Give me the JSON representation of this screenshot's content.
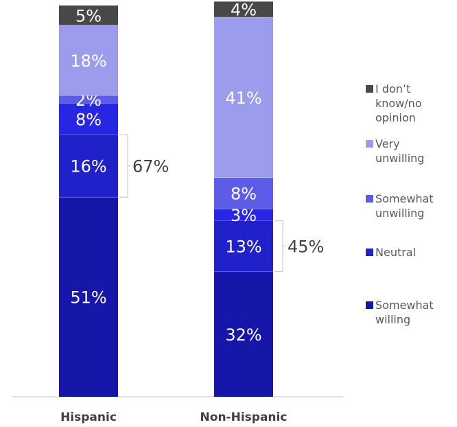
{
  "chart_data": {
    "type": "bar",
    "stacked": true,
    "categories": [
      "Hispanic",
      "Non-Hispanic"
    ],
    "series": [
      {
        "name": "Somewhat willing",
        "values": [
          51,
          32
        ],
        "labels": [
          "51%",
          "32%"
        ],
        "color": "#1616a8"
      },
      {
        "name": "Neutral",
        "values": [
          16,
          13
        ],
        "labels": [
          "16%",
          "13%"
        ],
        "color": "#2121c9"
      },
      {
        "name": "Somewhat unwilling",
        "values": [
          8,
          3
        ],
        "labels": [
          "8%",
          "3%"
        ],
        "color": "#2727e3"
      },
      {
        "name": "Very unwilling",
        "values": [
          2,
          8
        ],
        "labels": [
          "2%",
          "8%"
        ],
        "color": "#5c5ce8"
      },
      {
        "name": "I don't know/no opinion",
        "values": [
          18,
          41
        ],
        "labels": [
          "18%",
          "41%"
        ],
        "color": "#9c9cec"
      },
      {
        "name": "",
        "values": [
          5,
          4
        ],
        "labels": [
          "5%",
          "4%"
        ],
        "color": "#484848"
      }
    ],
    "brackets": [
      {
        "category": "Hispanic",
        "label": "67%",
        "from_series": 0,
        "to_series": 1
      },
      {
        "category": "Non-Hispanic",
        "label": "45%",
        "from_series": 0,
        "to_series": 1
      }
    ],
    "legend": {
      "position": "right",
      "entries": [
        {
          "label_lines": [
            "I don’t",
            "know/no",
            "opinion"
          ],
          "color": "#484848"
        },
        {
          "label_lines": [
            "Very",
            "unwilling"
          ],
          "color": "#9c9cec"
        },
        {
          "label_lines": [
            "Somewhat",
            "unwilling"
          ],
          "color": "#5c5ce8"
        },
        {
          "label_lines": [
            "Neutral"
          ],
          "color": "#2121c9"
        },
        {
          "label_lines": [
            "Somewhat",
            "willing"
          ],
          "color": "#1616a8"
        }
      ]
    },
    "ylim": [
      0,
      100
    ],
    "grid": false
  }
}
